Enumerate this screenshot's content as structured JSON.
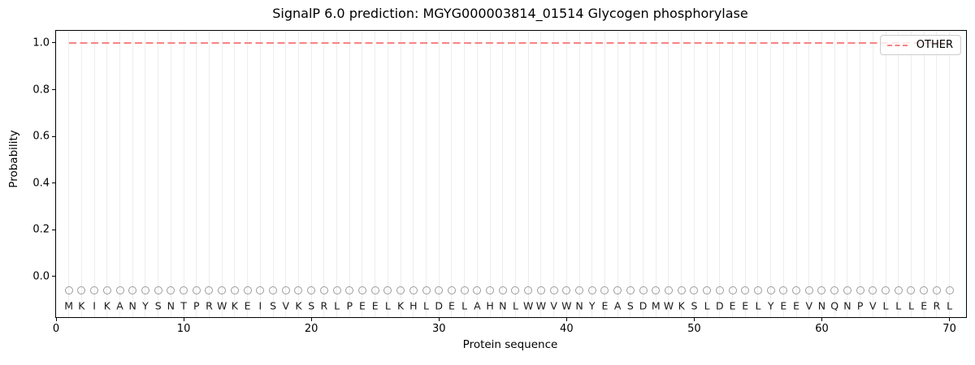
{
  "chart_data": {
    "type": "line",
    "title": "SignalP 6.0 prediction: MGYG000003814_01514 Glycogen phosphorylase",
    "xlabel": "Protein sequence",
    "ylabel": "Probability",
    "xtick_labels": [
      "0",
      "10",
      "20",
      "30",
      "40",
      "50",
      "60",
      "70"
    ],
    "xtick_values": [
      0,
      10,
      20,
      30,
      40,
      50,
      60,
      70
    ],
    "ytick_labels": [
      "0.0",
      "0.2",
      "0.4",
      "0.6",
      "0.8",
      "1.0"
    ],
    "ytick_values": [
      0.0,
      0.2,
      0.4,
      0.6,
      0.8,
      1.0
    ],
    "xlim": [
      0,
      71.3
    ],
    "ylim": [
      -0.174,
      1.052
    ],
    "grid": "vertical-per-residue",
    "gridline_color": "#ededed",
    "marker_color": "#9c9c9c",
    "spine_color": "#000000",
    "sequence": "MKIKANYSNTPRWKEISVKSRLPEELKHLDELAHNLWWVWNYEASDMWKSLDEELYEEVNQNPVLLLERL",
    "marker_y": -0.06,
    "letter_y": -0.125,
    "series": [
      {
        "name": "OTHER",
        "color": "#f98383",
        "style": "dashed",
        "y_constant": 1.0,
        "x_start": 1,
        "x_end": 70
      }
    ],
    "legend": {
      "position": "upper right",
      "entries": [
        {
          "label": "OTHER",
          "color": "#f98383",
          "style": "dashed"
        }
      ]
    }
  }
}
